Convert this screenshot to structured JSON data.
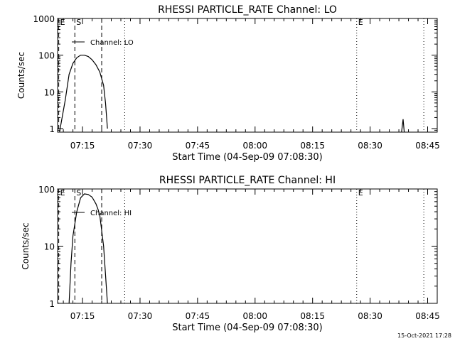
{
  "footer": {
    "timestamp": "15-Oct-2021 17:28"
  },
  "chart_data": [
    {
      "type": "line",
      "title": "RHESSI PARTICLE_RATE Channel: LO",
      "xlabel": "Start Time (04-Sep-09 07:08:30)",
      "ylabel": "Counts/sec",
      "x_unit": "minutes after 07:08:30",
      "xlim": [
        0,
        99
      ],
      "y_scale": "log",
      "ylim": [
        0.8,
        1000
      ],
      "x_ticks": [
        {
          "x": 6.5,
          "label": "07:15"
        },
        {
          "x": 21.5,
          "label": "07:30"
        },
        {
          "x": 36.5,
          "label": "07:45"
        },
        {
          "x": 51.5,
          "label": "08:00"
        },
        {
          "x": 66.5,
          "label": "08:15"
        },
        {
          "x": 81.5,
          "label": "08:30"
        },
        {
          "x": 96.5,
          "label": "08:45"
        }
      ],
      "y_ticks": [
        {
          "y": 1,
          "label": "1"
        },
        {
          "y": 10,
          "label": "10"
        },
        {
          "y": 100,
          "label": "100"
        },
        {
          "y": 1000,
          "label": "1000"
        }
      ],
      "legend": {
        "position": "top-left",
        "entries": [
          "Channel: LO"
        ]
      },
      "series": [
        {
          "name": "Channel: LO",
          "x": [
            0.5,
            2,
            3,
            4,
            5,
            6,
            7,
            8,
            9,
            10,
            11,
            12,
            12.5,
            13
          ],
          "y": [
            0.8,
            6,
            30,
            60,
            85,
            100,
            100,
            92,
            75,
            55,
            35,
            15,
            5,
            1
          ],
          "x2": [
            89.7,
            90.1,
            90.4
          ],
          "y2": [
            0.8,
            1.8,
            0.8
          ]
        }
      ],
      "markers": [
        {
          "x": 0.3,
          "style": "dashed",
          "label": "E"
        },
        {
          "x": 4.5,
          "style": "dashed",
          "label": "S"
        },
        {
          "x": 11.5,
          "style": "dashed",
          "label": ""
        },
        {
          "x": 17.5,
          "style": "dotted",
          "label": ""
        },
        {
          "x": 78.0,
          "style": "dotted",
          "label": "E"
        },
        {
          "x": 95.5,
          "style": "dotted",
          "label": ""
        }
      ]
    },
    {
      "type": "line",
      "title": "RHESSI PARTICLE_RATE Channel: HI",
      "xlabel": "Start Time (04-Sep-09 07:08:30)",
      "ylabel": "Counts/sec",
      "x_unit": "minutes after 07:08:30",
      "xlim": [
        0,
        99
      ],
      "y_scale": "log",
      "ylim": [
        1,
        100
      ],
      "x_ticks": [
        {
          "x": 6.5,
          "label": "07:15"
        },
        {
          "x": 21.5,
          "label": "07:30"
        },
        {
          "x": 36.5,
          "label": "07:45"
        },
        {
          "x": 51.5,
          "label": "08:00"
        },
        {
          "x": 66.5,
          "label": "08:15"
        },
        {
          "x": 81.5,
          "label": "08:30"
        },
        {
          "x": 96.5,
          "label": "08:45"
        }
      ],
      "y_ticks": [
        {
          "y": 1,
          "label": "1"
        },
        {
          "y": 10,
          "label": "10"
        },
        {
          "y": 100,
          "label": "100"
        }
      ],
      "legend": {
        "position": "top-left",
        "entries": [
          "Channel: HI"
        ]
      },
      "series": [
        {
          "name": "Channel: HI",
          "x": [
            3,
            3.5,
            4,
            5,
            6,
            7,
            8,
            9,
            10,
            10.5,
            11,
            12,
            13
          ],
          "y": [
            1,
            5,
            15,
            40,
            70,
            82,
            80,
            72,
            55,
            45,
            35,
            10,
            1
          ],
          "x2": [],
          "y2": []
        }
      ],
      "markers": [
        {
          "x": 0.3,
          "style": "dashed",
          "label": "E"
        },
        {
          "x": 4.5,
          "style": "dashed",
          "label": "S"
        },
        {
          "x": 11.5,
          "style": "dashed",
          "label": ""
        },
        {
          "x": 17.5,
          "style": "dotted",
          "label": ""
        },
        {
          "x": 78.0,
          "style": "dotted",
          "label": "E"
        },
        {
          "x": 95.5,
          "style": "dotted",
          "label": ""
        }
      ]
    }
  ]
}
